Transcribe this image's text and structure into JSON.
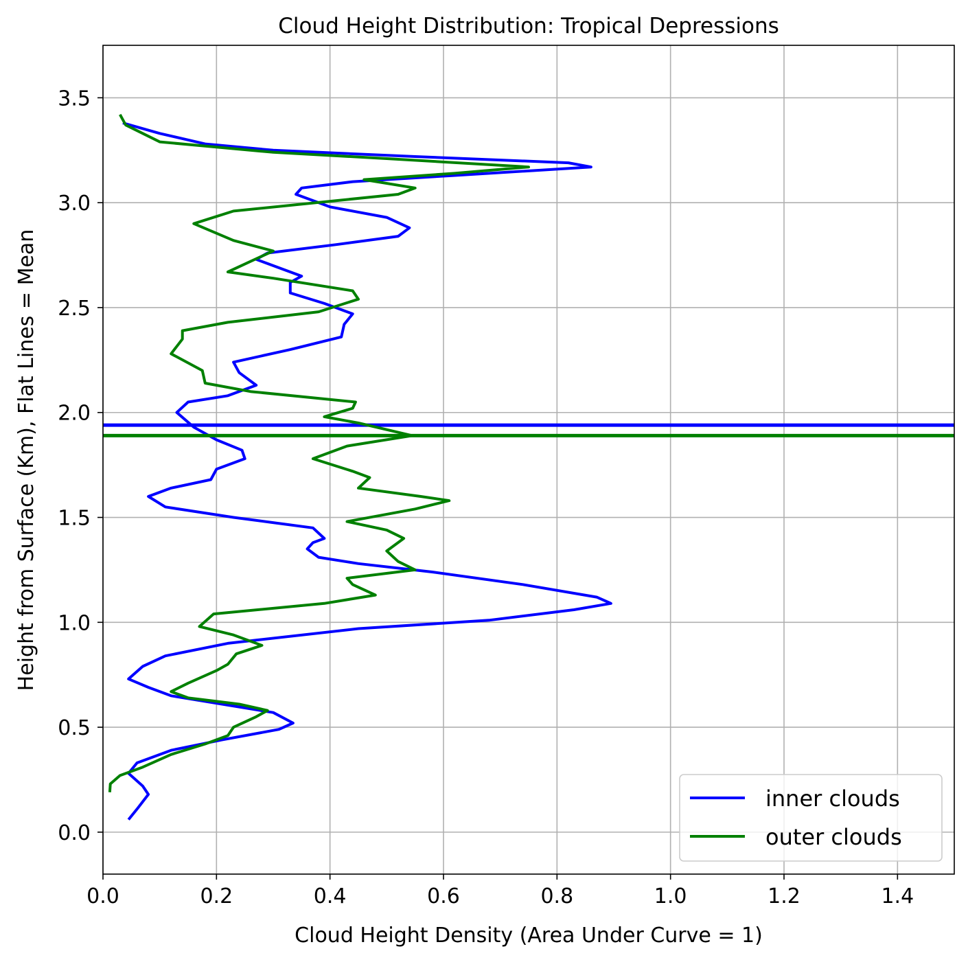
{
  "chart_data": {
    "type": "line",
    "title": "Cloud Height Distribution: Tropical Depressions",
    "xlabel": "Cloud Height Density (Area Under Curve = 1)",
    "ylabel": "Height from Surface (Km), Flat Lines = Mean",
    "xlim": [
      0.0,
      1.5
    ],
    "ylim": [
      -0.2,
      3.75
    ],
    "xticks": [
      "0.0",
      "0.2",
      "0.4",
      "0.6",
      "0.8",
      "1.0",
      "1.2",
      "1.4"
    ],
    "yticks": [
      "0.0",
      "0.5",
      "1.0",
      "1.5",
      "2.0",
      "2.5",
      "3.0",
      "3.5"
    ],
    "xtick_values": [
      0.0,
      0.2,
      0.4,
      0.6,
      0.8,
      1.0,
      1.2,
      1.4
    ],
    "ytick_values": [
      0.0,
      0.5,
      1.0,
      1.5,
      2.0,
      2.5,
      3.0,
      3.5
    ],
    "grid": true,
    "legend_position": "lower-right",
    "series": [
      {
        "name": "inner clouds",
        "color": "#0000ff",
        "mean": 1.94,
        "points": [
          [
            0.045,
            0.06
          ],
          [
            0.06,
            0.11
          ],
          [
            0.08,
            0.18
          ],
          [
            0.07,
            0.22
          ],
          [
            0.045,
            0.28
          ],
          [
            0.06,
            0.33
          ],
          [
            0.12,
            0.39
          ],
          [
            0.21,
            0.44
          ],
          [
            0.31,
            0.49
          ],
          [
            0.335,
            0.52
          ],
          [
            0.3,
            0.57
          ],
          [
            0.21,
            0.61
          ],
          [
            0.12,
            0.65
          ],
          [
            0.08,
            0.69
          ],
          [
            0.045,
            0.73
          ],
          [
            0.07,
            0.79
          ],
          [
            0.11,
            0.84
          ],
          [
            0.22,
            0.9
          ],
          [
            0.45,
            0.97
          ],
          [
            0.68,
            1.01
          ],
          [
            0.83,
            1.06
          ],
          [
            0.895,
            1.09
          ],
          [
            0.87,
            1.12
          ],
          [
            0.74,
            1.18
          ],
          [
            0.58,
            1.24
          ],
          [
            0.45,
            1.28
          ],
          [
            0.38,
            1.31
          ],
          [
            0.36,
            1.35
          ],
          [
            0.37,
            1.38
          ],
          [
            0.39,
            1.4
          ],
          [
            0.37,
            1.45
          ],
          [
            0.23,
            1.5
          ],
          [
            0.11,
            1.55
          ],
          [
            0.08,
            1.6
          ],
          [
            0.12,
            1.64
          ],
          [
            0.19,
            1.68
          ],
          [
            0.2,
            1.73
          ],
          [
            0.25,
            1.78
          ],
          [
            0.245,
            1.82
          ],
          [
            0.2,
            1.87
          ],
          [
            0.16,
            1.93
          ],
          [
            0.13,
            2.0
          ],
          [
            0.15,
            2.05
          ],
          [
            0.22,
            2.08
          ],
          [
            0.27,
            2.13
          ],
          [
            0.24,
            2.19
          ],
          [
            0.23,
            2.24
          ],
          [
            0.33,
            2.3
          ],
          [
            0.42,
            2.36
          ],
          [
            0.425,
            2.42
          ],
          [
            0.44,
            2.47
          ],
          [
            0.39,
            2.52
          ],
          [
            0.33,
            2.57
          ],
          [
            0.33,
            2.62
          ],
          [
            0.35,
            2.65
          ],
          [
            0.32,
            2.68
          ],
          [
            0.27,
            2.73
          ],
          [
            0.29,
            2.76
          ],
          [
            0.41,
            2.8
          ],
          [
            0.52,
            2.84
          ],
          [
            0.54,
            2.88
          ],
          [
            0.5,
            2.93
          ],
          [
            0.4,
            2.98
          ],
          [
            0.34,
            3.04
          ],
          [
            0.35,
            3.07
          ],
          [
            0.44,
            3.1
          ],
          [
            0.62,
            3.13
          ],
          [
            0.86,
            3.17
          ],
          [
            0.82,
            3.19
          ],
          [
            0.55,
            3.22
          ],
          [
            0.3,
            3.25
          ],
          [
            0.18,
            3.28
          ],
          [
            0.1,
            3.33
          ],
          [
            0.035,
            3.38
          ]
        ]
      },
      {
        "name": "outer clouds",
        "color": "#008000",
        "mean": 1.89,
        "points": [
          [
            0.012,
            0.19
          ],
          [
            0.013,
            0.23
          ],
          [
            0.03,
            0.27
          ],
          [
            0.07,
            0.31
          ],
          [
            0.12,
            0.37
          ],
          [
            0.18,
            0.42
          ],
          [
            0.22,
            0.46
          ],
          [
            0.23,
            0.5
          ],
          [
            0.27,
            0.55
          ],
          [
            0.29,
            0.58
          ],
          [
            0.24,
            0.61
          ],
          [
            0.15,
            0.64
          ],
          [
            0.12,
            0.67
          ],
          [
            0.15,
            0.71
          ],
          [
            0.2,
            0.77
          ],
          [
            0.22,
            0.8
          ],
          [
            0.235,
            0.85
          ],
          [
            0.28,
            0.89
          ],
          [
            0.23,
            0.94
          ],
          [
            0.17,
            0.98
          ],
          [
            0.195,
            1.04
          ],
          [
            0.39,
            1.09
          ],
          [
            0.48,
            1.13
          ],
          [
            0.44,
            1.18
          ],
          [
            0.43,
            1.21
          ],
          [
            0.55,
            1.25
          ],
          [
            0.52,
            1.29
          ],
          [
            0.5,
            1.34
          ],
          [
            0.53,
            1.4
          ],
          [
            0.5,
            1.44
          ],
          [
            0.43,
            1.48
          ],
          [
            0.55,
            1.54
          ],
          [
            0.61,
            1.58
          ],
          [
            0.56,
            1.6
          ],
          [
            0.45,
            1.64
          ],
          [
            0.47,
            1.69
          ],
          [
            0.44,
            1.72
          ],
          [
            0.37,
            1.78
          ],
          [
            0.43,
            1.84
          ],
          [
            0.545,
            1.89
          ],
          [
            0.45,
            1.95
          ],
          [
            0.39,
            1.98
          ],
          [
            0.44,
            2.02
          ],
          [
            0.445,
            2.05
          ],
          [
            0.26,
            2.1
          ],
          [
            0.18,
            2.14
          ],
          [
            0.175,
            2.2
          ],
          [
            0.12,
            2.28
          ],
          [
            0.14,
            2.35
          ],
          [
            0.14,
            2.39
          ],
          [
            0.22,
            2.43
          ],
          [
            0.38,
            2.48
          ],
          [
            0.45,
            2.54
          ],
          [
            0.44,
            2.58
          ],
          [
            0.3,
            2.64
          ],
          [
            0.22,
            2.67
          ],
          [
            0.26,
            2.72
          ],
          [
            0.3,
            2.77
          ],
          [
            0.23,
            2.82
          ],
          [
            0.16,
            2.9
          ],
          [
            0.23,
            2.96
          ],
          [
            0.52,
            3.04
          ],
          [
            0.55,
            3.07
          ],
          [
            0.46,
            3.11
          ],
          [
            0.62,
            3.14
          ],
          [
            0.75,
            3.17
          ],
          [
            0.5,
            3.21
          ],
          [
            0.3,
            3.24
          ],
          [
            0.1,
            3.29
          ],
          [
            0.04,
            3.37
          ],
          [
            0.03,
            3.42
          ]
        ]
      }
    ]
  }
}
